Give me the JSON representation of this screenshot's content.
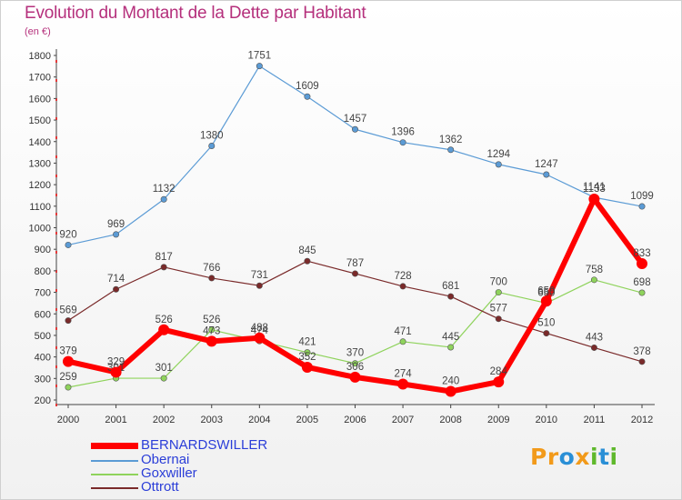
{
  "title": "Evolution du Montant de la Dette par Habitant",
  "subtitle": "(en €)",
  "logo": {
    "letters": [
      "P",
      "r",
      "o",
      "x",
      "i",
      "t",
      "i"
    ],
    "colors": [
      "#f29a1a",
      "#f29a1a",
      "#2a8fd6",
      "#f29a1a",
      "#5fb82c",
      "#2a8fd6",
      "#5fb82c"
    ]
  },
  "chart_data": {
    "type": "line",
    "x": [
      "2000",
      "2001",
      "2002",
      "2003",
      "2004",
      "2005",
      "2006",
      "2007",
      "2008",
      "2009",
      "2010",
      "2011",
      "2012"
    ],
    "ylim": [
      200,
      1800
    ],
    "yticks": [
      200,
      300,
      400,
      500,
      600,
      700,
      800,
      900,
      1000,
      1100,
      1200,
      1300,
      1400,
      1500,
      1600,
      1700,
      1800
    ],
    "grid": false,
    "legend_position": "bottom-left",
    "series": [
      {
        "name": "BERNARDSWILLER",
        "color": "#ff0000",
        "width": 6,
        "values": [
          379,
          329,
          526,
          473,
          488,
          352,
          306,
          274,
          240,
          284,
          659,
          1133,
          833
        ]
      },
      {
        "name": "Obernai",
        "color": "#5b9bd5",
        "width": 1.2,
        "values": [
          920,
          969,
          1132,
          1380,
          1751,
          1609,
          1457,
          1396,
          1362,
          1294,
          1247,
          1141,
          1099
        ]
      },
      {
        "name": "Goxwiller",
        "color": "#8fd35c",
        "width": 1.2,
        "values": [
          259,
          301,
          301,
          526,
          474,
          421,
          370,
          471,
          445,
          700,
          650,
          758,
          698
        ]
      },
      {
        "name": "Ottrott",
        "color": "#7a2a2a",
        "width": 1.2,
        "values": [
          569,
          714,
          817,
          766,
          731,
          845,
          787,
          728,
          681,
          577,
          510,
          443,
          378
        ]
      }
    ]
  }
}
